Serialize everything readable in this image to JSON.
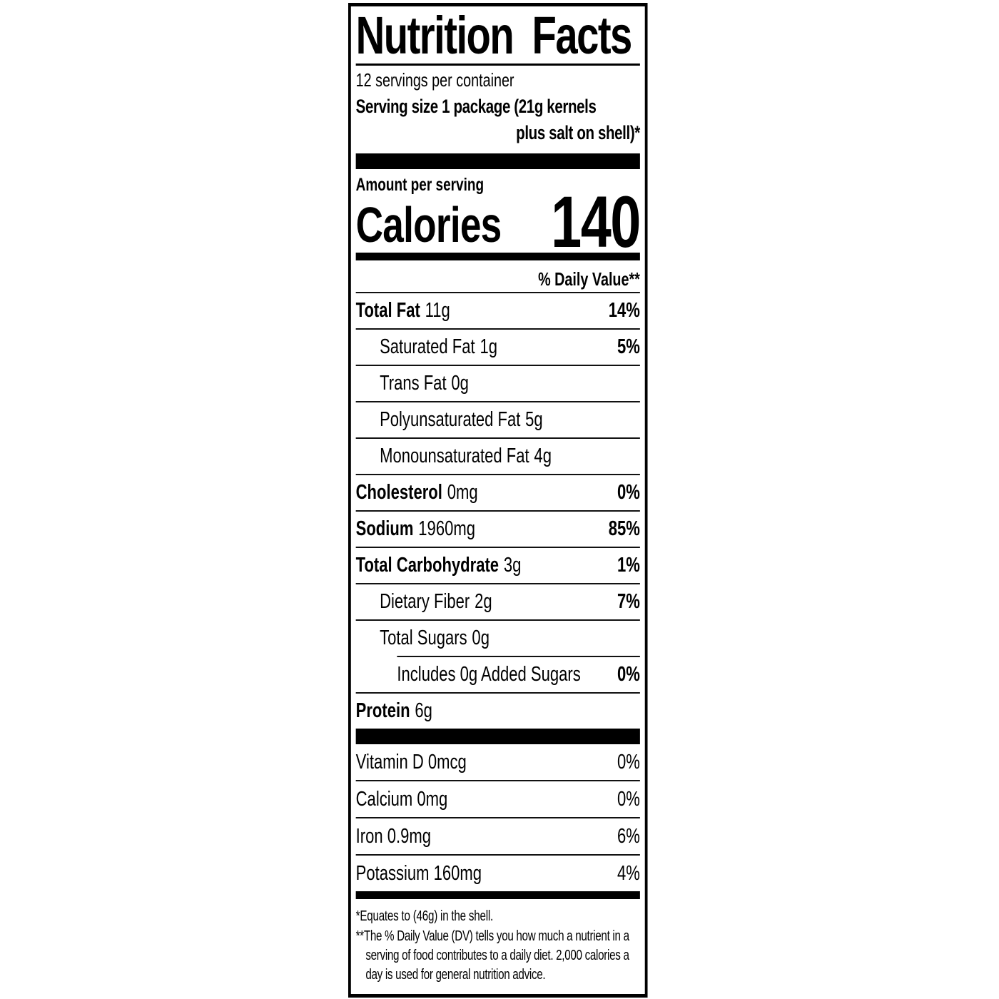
{
  "label": {
    "title": "Nutrition Facts",
    "servings_per_container": "12 servings per container",
    "serving_size": {
      "line1": "Serving size 1 package (21g kernels",
      "line2": "plus salt on shell)*"
    },
    "amount_per_serving": "Amount per serving",
    "calories_label": "Calories",
    "calories_value": "140",
    "daily_value_header": "% Daily Value**",
    "nutrients": [
      {
        "name": "Total Fat",
        "amount": "11g",
        "dv": "14%"
      },
      {
        "name": "Saturated Fat",
        "amount": "1g",
        "dv": "5%"
      },
      {
        "name": "Trans Fat",
        "amount": "0g",
        "dv": ""
      },
      {
        "name": "Polyunsaturated Fat",
        "amount": "5g",
        "dv": ""
      },
      {
        "name": "Monounsaturated Fat",
        "amount": "4g",
        "dv": ""
      },
      {
        "name": "Cholesterol",
        "amount": "0mg",
        "dv": "0%"
      },
      {
        "name": "Sodium",
        "amount": "1960mg",
        "dv": "85%"
      },
      {
        "name": "Total Carbohydrate",
        "amount": "3g",
        "dv": "1%"
      },
      {
        "name": "Dietary Fiber",
        "amount": "2g",
        "dv": "7%"
      },
      {
        "name": "Total Sugars",
        "amount": "0g",
        "dv": ""
      },
      {
        "name": "Includes 0g Added Sugars",
        "amount": "",
        "dv": "0%"
      },
      {
        "name": "Protein",
        "amount": "6g",
        "dv": ""
      }
    ],
    "micronutrients": [
      {
        "name": "Vitamin D 0mcg",
        "dv": "0%"
      },
      {
        "name": "Calcium 0mg",
        "dv": "0%"
      },
      {
        "name": "Iron 0.9mg",
        "dv": "6%"
      },
      {
        "name": "Potassium 160mg",
        "dv": "4%"
      }
    ],
    "footnotes": {
      "equates": "*Equates to (46g) in the shell.",
      "daily_value": "**The % Daily Value (DV) tells you how much a nutrient in a serving of food contributes to a daily diet. 2,000 calories a day is used for general nutrition advice."
    },
    "colors": {
      "text": "#000000",
      "background": "#ffffff"
    }
  }
}
